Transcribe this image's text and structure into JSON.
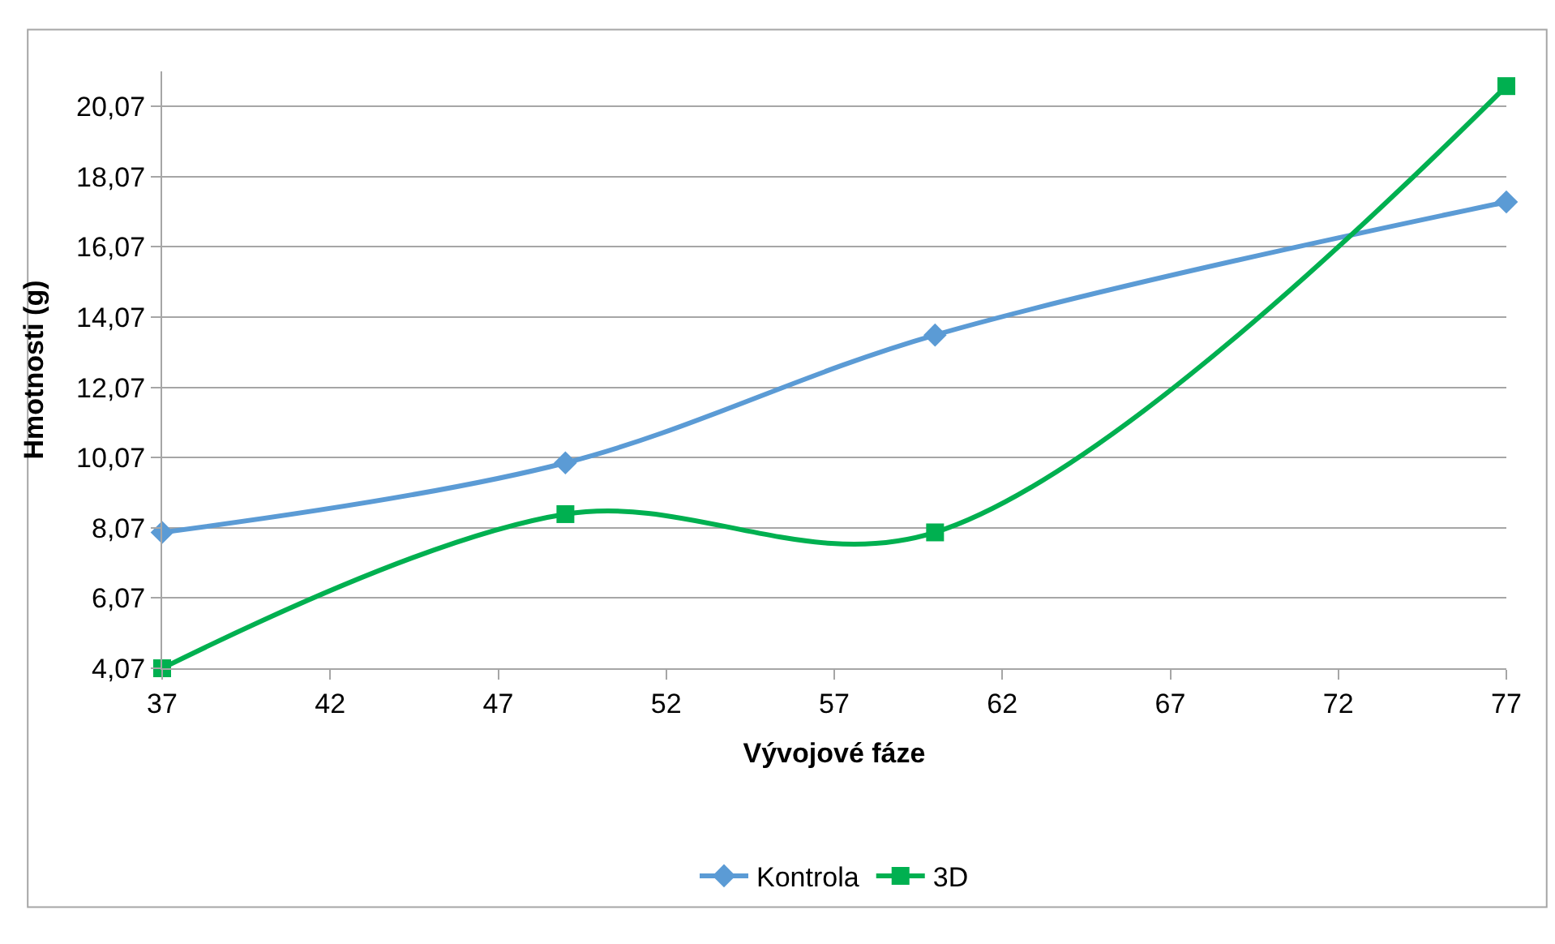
{
  "chart_data": {
    "type": "line",
    "xlabel": "Vývojové fáze",
    "ylabel": "Hmotnosti (g)",
    "xlim": [
      37,
      77
    ],
    "xticks": [
      37,
      42,
      47,
      52,
      57,
      62,
      67,
      72,
      77
    ],
    "ylim": [
      4.07,
      21.07
    ],
    "yticks": [
      {
        "value": 4.07,
        "label": "4,07"
      },
      {
        "value": 6.07,
        "label": "6,07"
      },
      {
        "value": 8.07,
        "label": "8,07"
      },
      {
        "value": 10.07,
        "label": "10,07"
      },
      {
        "value": 12.07,
        "label": "12,07"
      },
      {
        "value": 14.07,
        "label": "14,07"
      },
      {
        "value": 16.07,
        "label": "16,07"
      },
      {
        "value": 18.07,
        "label": "18,07"
      },
      {
        "value": 20.07,
        "label": "20,07"
      }
    ],
    "grid": "y",
    "legend": "bottom",
    "line_style": "solid",
    "series": [
      {
        "name": "Kontrola",
        "color": "#5b9bd5",
        "marker": "diamond",
        "x": [
          37,
          49,
          60,
          77
        ],
        "values": [
          7.94,
          9.92,
          13.56,
          17.35
        ]
      },
      {
        "name": "3D",
        "color": "#00b050",
        "marker": "square",
        "x": [
          37,
          49,
          60,
          77
        ],
        "values": [
          4.07,
          8.46,
          7.94,
          20.65
        ]
      }
    ]
  }
}
